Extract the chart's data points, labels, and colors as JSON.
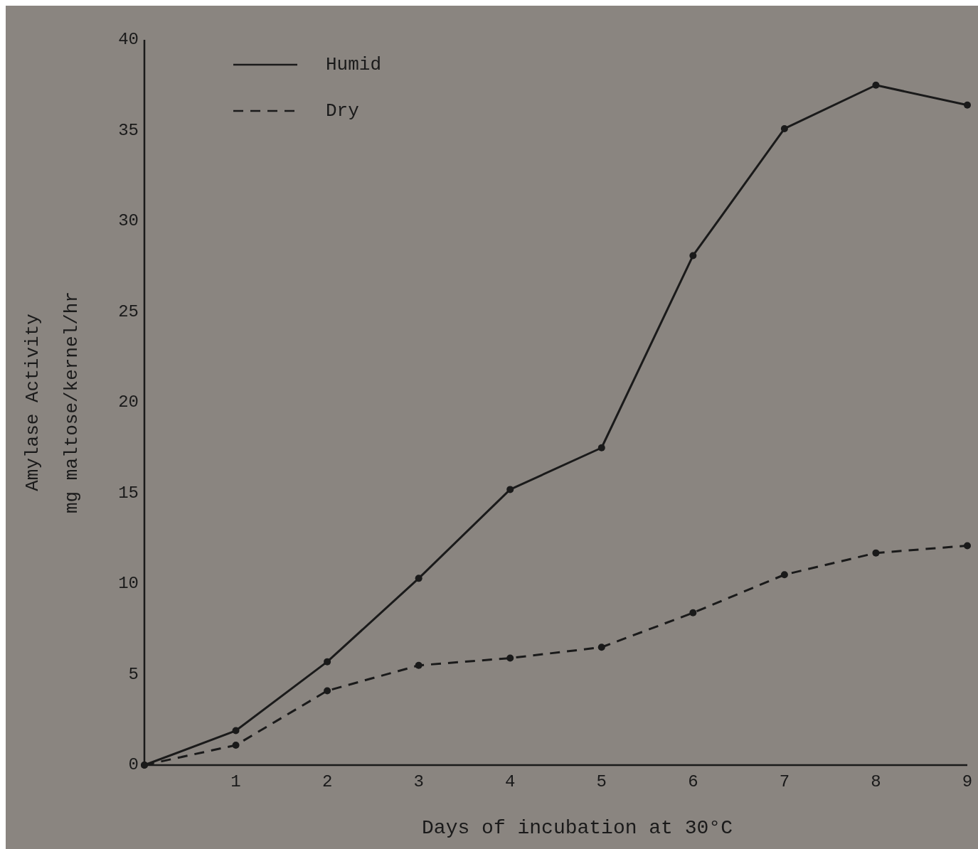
{
  "chart_data": {
    "type": "line",
    "xlabel": "Days of incubation at 30°C",
    "ylabel": "Amylase Activity\nmg maltose/kernel/hr",
    "x": [
      0,
      1,
      2,
      3,
      4,
      5,
      6,
      7,
      8,
      9
    ],
    "series": [
      {
        "name": "Humid",
        "color": "#1a1a1a",
        "line_style": "solid",
        "values": [
          0,
          1.9,
          5.7,
          10.3,
          15.2,
          17.5,
          28.1,
          35.1,
          37.5,
          36.4
        ]
      },
      {
        "name": "Dry",
        "color": "#1a1a1a",
        "line_style": "dashed",
        "values": [
          0,
          1.1,
          4.1,
          5.5,
          5.9,
          6.5,
          8.4,
          10.5,
          11.7,
          12.1
        ]
      }
    ],
    "xlim": [
      0,
      9
    ],
    "xticks": [
      1,
      2,
      3,
      4,
      5,
      6,
      7,
      8,
      9
    ],
    "ylim": [
      0,
      40
    ],
    "yticks": [
      0,
      5,
      10,
      15,
      20,
      25,
      30,
      35,
      40
    ],
    "grid": false,
    "legend": "top left",
    "marker": "circle"
  }
}
